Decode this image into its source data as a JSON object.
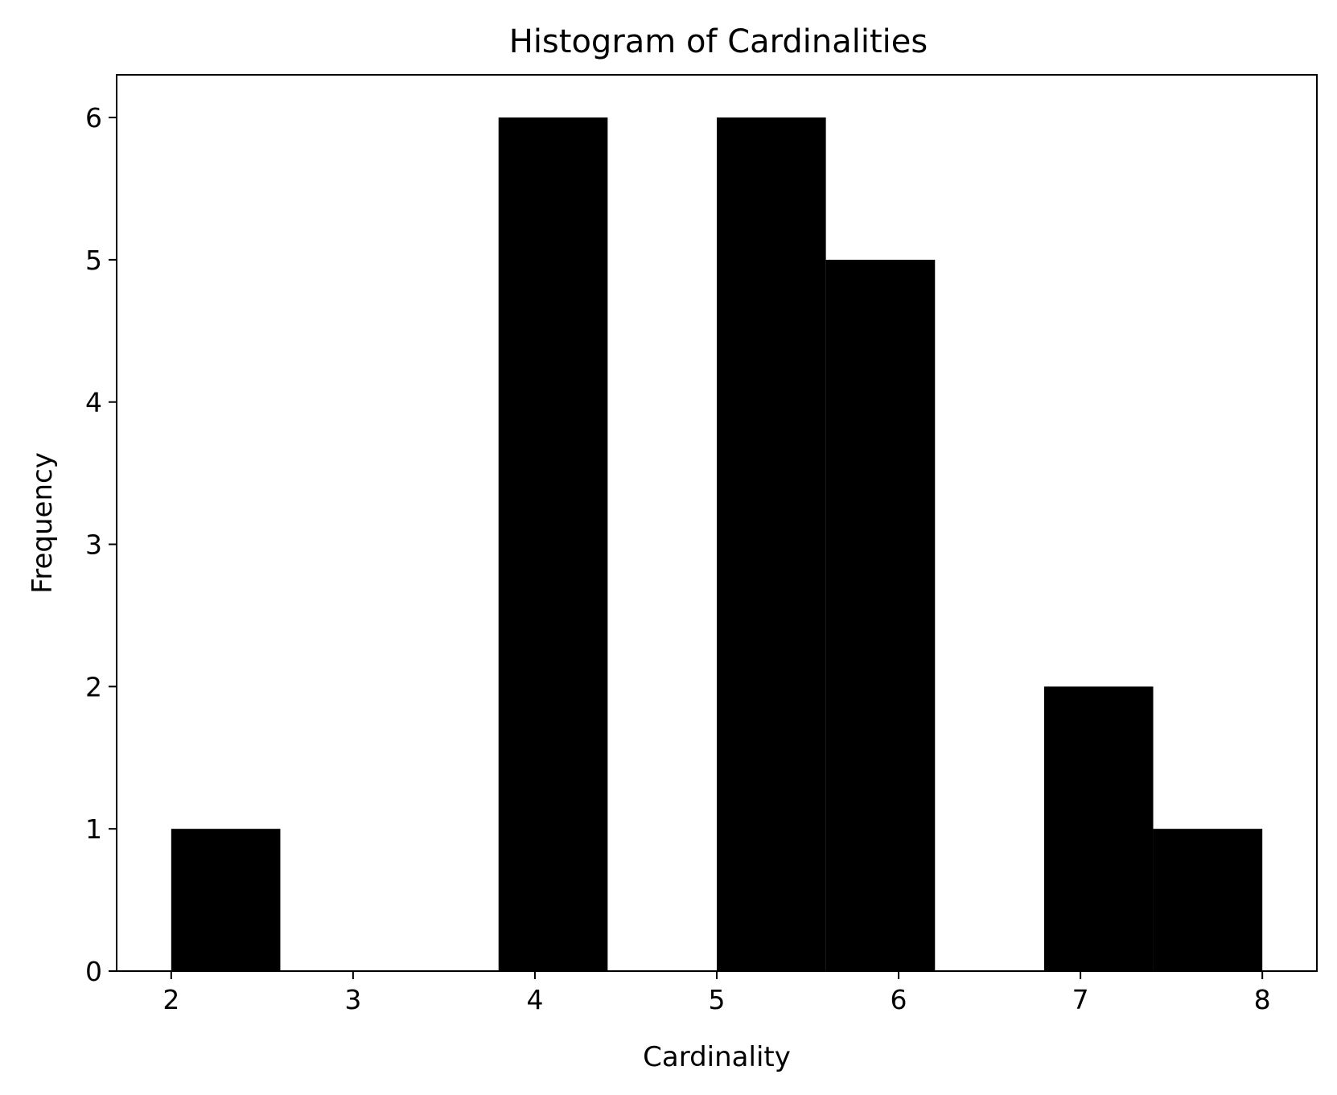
{
  "chart_data": {
    "type": "bar",
    "title": "Histogram of Cardinalities",
    "xlabel": "Cardinality",
    "ylabel": "Frequency",
    "xlim": [
      1.7,
      8.3
    ],
    "ylim": [
      0,
      6.3
    ],
    "xticks": [
      2,
      3,
      4,
      5,
      6,
      7,
      8
    ],
    "xtick_labels": [
      "2",
      "3",
      "4",
      "5",
      "6",
      "7",
      "8"
    ],
    "yticks": [
      0,
      1,
      2,
      3,
      4,
      5,
      6
    ],
    "ytick_labels": [
      "0",
      "1",
      "2",
      "3",
      "4",
      "5",
      "6"
    ],
    "grid": false,
    "bar_color": "#000000",
    "bin_edges": [
      2.0,
      2.6,
      3.2,
      3.8,
      4.4,
      5.0,
      5.6,
      6.2,
      6.8,
      7.4,
      8.0
    ],
    "values": [
      1,
      0,
      0,
      6,
      0,
      6,
      5,
      0,
      2,
      1
    ]
  }
}
